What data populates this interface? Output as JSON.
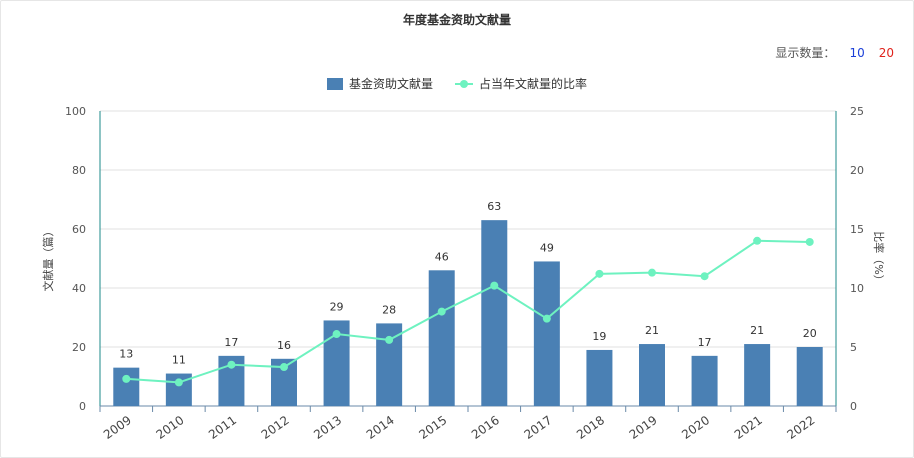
{
  "title": "年度基金资助文献量",
  "display_count": {
    "label": "显示数量：",
    "options": [
      "10",
      "20"
    ]
  },
  "legend": {
    "bar": "基金资助文献量",
    "line": "占当年文献量的比率"
  },
  "colors": {
    "bar": "#4a80b4",
    "line": "#6ef2c0",
    "axis_left": "#1b8a8a",
    "grid": "#e2e2e2",
    "option_10": "#1a3fd8",
    "option_20": "#e0231c"
  },
  "chart_data": {
    "type": "bar+line",
    "title": "年度基金资助文献量",
    "categories": [
      "2009",
      "2010",
      "2011",
      "2012",
      "2013",
      "2014",
      "2015",
      "2016",
      "2017",
      "2018",
      "2019",
      "2020",
      "2021",
      "2022"
    ],
    "series": [
      {
        "name": "基金资助文献量",
        "type": "bar",
        "axis": "left",
        "values": [
          13,
          11,
          17,
          16,
          29,
          28,
          46,
          63,
          49,
          19,
          21,
          17,
          21,
          20
        ]
      },
      {
        "name": "占当年文献量的比率",
        "type": "line",
        "axis": "right",
        "values": [
          2.3,
          2.0,
          3.5,
          3.3,
          6.1,
          5.6,
          8.0,
          10.2,
          7.4,
          11.2,
          11.3,
          11.0,
          14.0,
          13.9
        ]
      }
    ],
    "ylabel": "文献量（篇）",
    "y2label": "比率（%）",
    "ylim": [
      0,
      100
    ],
    "y2lim": [
      0,
      25
    ],
    "yticks": [
      0,
      20,
      40,
      60,
      80,
      100
    ],
    "y2ticks": [
      0,
      5,
      10,
      15,
      20,
      25
    ],
    "grid": true,
    "legend_position": "top-center"
  }
}
